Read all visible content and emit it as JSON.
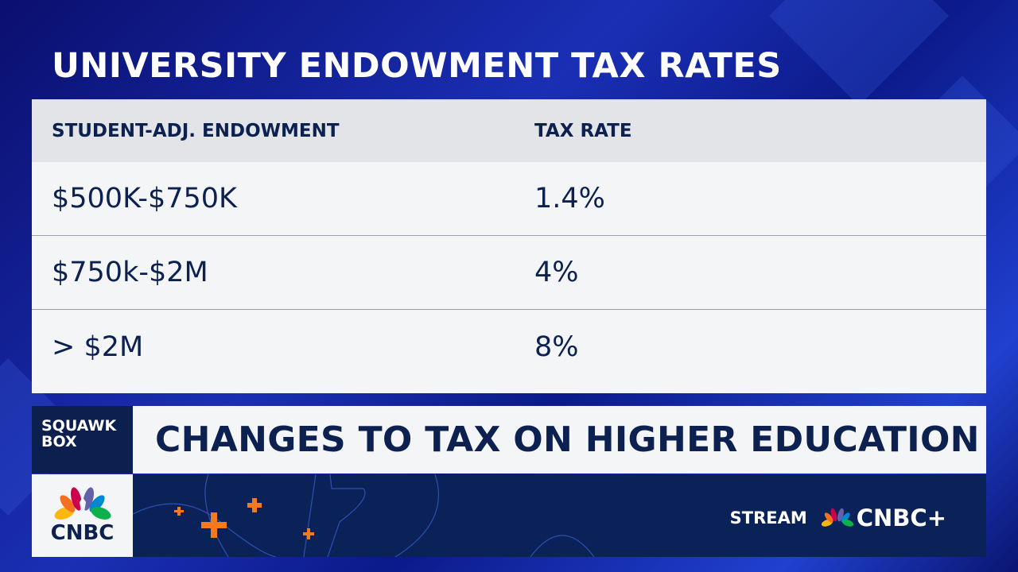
{
  "title": "UNIVERSITY ENDOWMENT TAX RATES",
  "table": {
    "headers": [
      "STUDENT-ADJ. ENDOWMENT",
      "TAX RATE"
    ],
    "rows": [
      [
        "$500K-$750K",
        "1.4%"
      ],
      [
        "$750k-$2M",
        "4%"
      ],
      [
        "> $2M",
        "8%"
      ]
    ]
  },
  "lower_third": {
    "show": [
      "SQUAWK",
      "BOX"
    ],
    "headline": "CHANGES TO TAX ON HIGHER EDUCATION"
  },
  "logo": {
    "text": "CNBC"
  },
  "promo": {
    "stream": "STREAM",
    "brand": "CNBC+"
  },
  "colors": {
    "navy": "#0c2050",
    "accent_orange": "#f47a20"
  }
}
